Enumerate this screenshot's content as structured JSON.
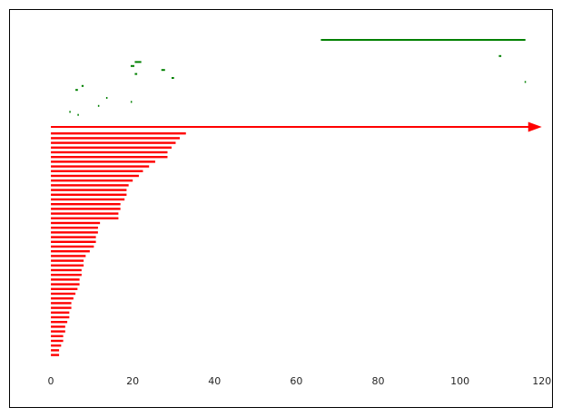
{
  "chart_data": {
    "type": "bar",
    "orientation": "horizontal",
    "title": "",
    "xlabel": "",
    "ylabel": "",
    "xlim": [
      -10,
      122.5
    ],
    "x_ticks": [
      0,
      20,
      40,
      60,
      80,
      100,
      120
    ],
    "x_tick_labels": [
      "0",
      "20",
      "40",
      "60",
      "80",
      "100",
      "120"
    ],
    "grid": false,
    "legend": "none",
    "colors": {
      "bars": "#ff0000",
      "arrow": "#ff0000",
      "green": "#008000",
      "frame": "#000000"
    },
    "bar_values": [
      33,
      31.5,
      30.5,
      29.5,
      28.5,
      28.5,
      25.5,
      24,
      22.5,
      21.5,
      20,
      19,
      18.5,
      18.5,
      18,
      17,
      17,
      16.5,
      16.5,
      12,
      11.5,
      11.5,
      11,
      11,
      10.5,
      9.5,
      8.5,
      8,
      8,
      7.5,
      7.5,
      7,
      7,
      6.5,
      6,
      5.5,
      5,
      5,
      4.5,
      4.5,
      4,
      3.5,
      3.5,
      3,
      3,
      2.5,
      2,
      2
    ],
    "arrow": {
      "from": 0,
      "to": 120
    },
    "green_line": {
      "x_start": 66,
      "x_end": 116
    },
    "green_marks": [
      {
        "x": 4.5,
        "row": 0.6,
        "len": 0.3
      },
      {
        "x": 6.5,
        "row": 0.3,
        "len": 0.3
      },
      {
        "x": 11.5,
        "row": 1.2,
        "len": 0.3
      },
      {
        "x": 13.5,
        "row": 2.0,
        "len": 0.3
      },
      {
        "x": 19.5,
        "row": 1.6,
        "len": 0.3
      },
      {
        "x": 6,
        "row": 2.8,
        "len": 0.6
      },
      {
        "x": 7.5,
        "row": 3.2,
        "len": 0.5
      },
      {
        "x": 20.5,
        "row": 4.4,
        "len": 0.6
      },
      {
        "x": 19.5,
        "row": 5.2,
        "len": 0.9
      },
      {
        "x": 20.5,
        "row": 5.6,
        "len": 1.6
      },
      {
        "x": 27,
        "row": 4.8,
        "len": 0.9
      },
      {
        "x": 29.5,
        "row": 4.0,
        "len": 0.6
      },
      {
        "x": 109.5,
        "row": 6.2,
        "len": 0.6
      },
      {
        "x": 115.8,
        "row": 3.6,
        "len": 0.3
      }
    ]
  }
}
